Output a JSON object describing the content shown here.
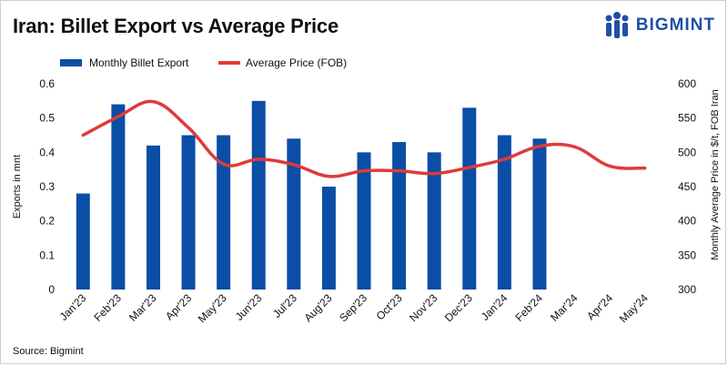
{
  "header": {
    "title": "Iran: Billet Export vs Average Price",
    "brand": "BIGMINT",
    "logo_icon": "bigmint-people-icon"
  },
  "footer": {
    "source": "Source: Bigmint"
  },
  "colors": {
    "bar": "#0a4ea6",
    "line": "#e03a3a",
    "text": "#111111"
  },
  "chart_data": {
    "type": "bar",
    "categories": [
      "Jan'23",
      "Feb'23",
      "Mar'23",
      "Apr'23",
      "May'23",
      "Jun'23",
      "Jul'23",
      "Aug'23",
      "Sep'23",
      "Oct'23",
      "Nov'23",
      "Dec'23",
      "Jan'24",
      "Feb'24",
      "Mar'24",
      "Apr'24",
      "May'24"
    ],
    "series": [
      {
        "name": "Monthly Billet Export",
        "type": "bar",
        "axis": "left",
        "values": [
          0.28,
          0.54,
          0.42,
          0.45,
          0.45,
          0.55,
          0.44,
          0.3,
          0.4,
          0.43,
          0.4,
          0.53,
          0.45,
          0.44,
          null,
          null,
          null
        ]
      },
      {
        "name": "Average Price (FOB)",
        "type": "line",
        "axis": "right",
        "values": [
          525,
          552,
          574,
          536,
          483,
          490,
          482,
          465,
          473,
          473,
          469,
          478,
          490,
          509,
          508,
          480,
          477
        ]
      }
    ],
    "ylabel": "Exports in mnt",
    "ylabel_right": "Monthly Average Price in $/t, FOB Iran",
    "ylim": [
      0,
      0.6
    ],
    "yticks": [
      "0",
      "0.1",
      "0.2",
      "0.3",
      "0.4",
      "0.5",
      "0.6"
    ],
    "ylim_right": [
      300,
      600
    ],
    "yticks_right": [
      "300",
      "350",
      "400",
      "450",
      "500",
      "550",
      "600"
    ],
    "legend_position": "top-left",
    "grid": false
  }
}
